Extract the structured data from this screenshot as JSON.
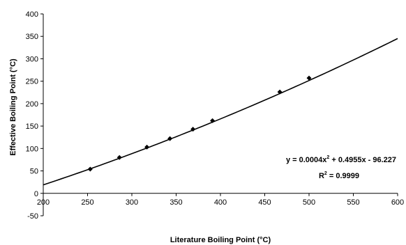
{
  "chart_data": {
    "type": "scatter",
    "title": "",
    "xlabel": "Literature Boiling Point (°C)",
    "ylabel": "Effective Boiling Point (°C)",
    "xlim": [
      200,
      600
    ],
    "ylim": [
      -50,
      400
    ],
    "x_ticks": [
      "200",
      "250",
      "300",
      "350",
      "400",
      "450",
      "500",
      "550",
      "600"
    ],
    "y_ticks": [
      "-50",
      "0",
      "50",
      "100",
      "150",
      "200",
      "250",
      "300",
      "350",
      "400"
    ],
    "grid": false,
    "legend": "none",
    "series": [
      {
        "marker": "diamond",
        "x": [
          253,
          286,
          317,
          343,
          369,
          391,
          467,
          500
        ],
        "y": [
          54,
          80,
          103,
          122,
          143,
          162,
          226,
          257
        ]
      }
    ],
    "trendline": {
      "type": "polynomial",
      "degree": 2,
      "coefficients": {
        "a": 0.0004,
        "b": 0.4955,
        "c": -96.227
      },
      "x_range": [
        200,
        600
      ]
    },
    "annotations": {
      "equation": {
        "prefix": "y = 0.0004x",
        "sup": "2",
        "suffix": " + 0.4955x - 96.227"
      },
      "r_squared": {
        "prefix": "R",
        "sup": "2",
        "suffix": " = 0.9999"
      }
    }
  }
}
